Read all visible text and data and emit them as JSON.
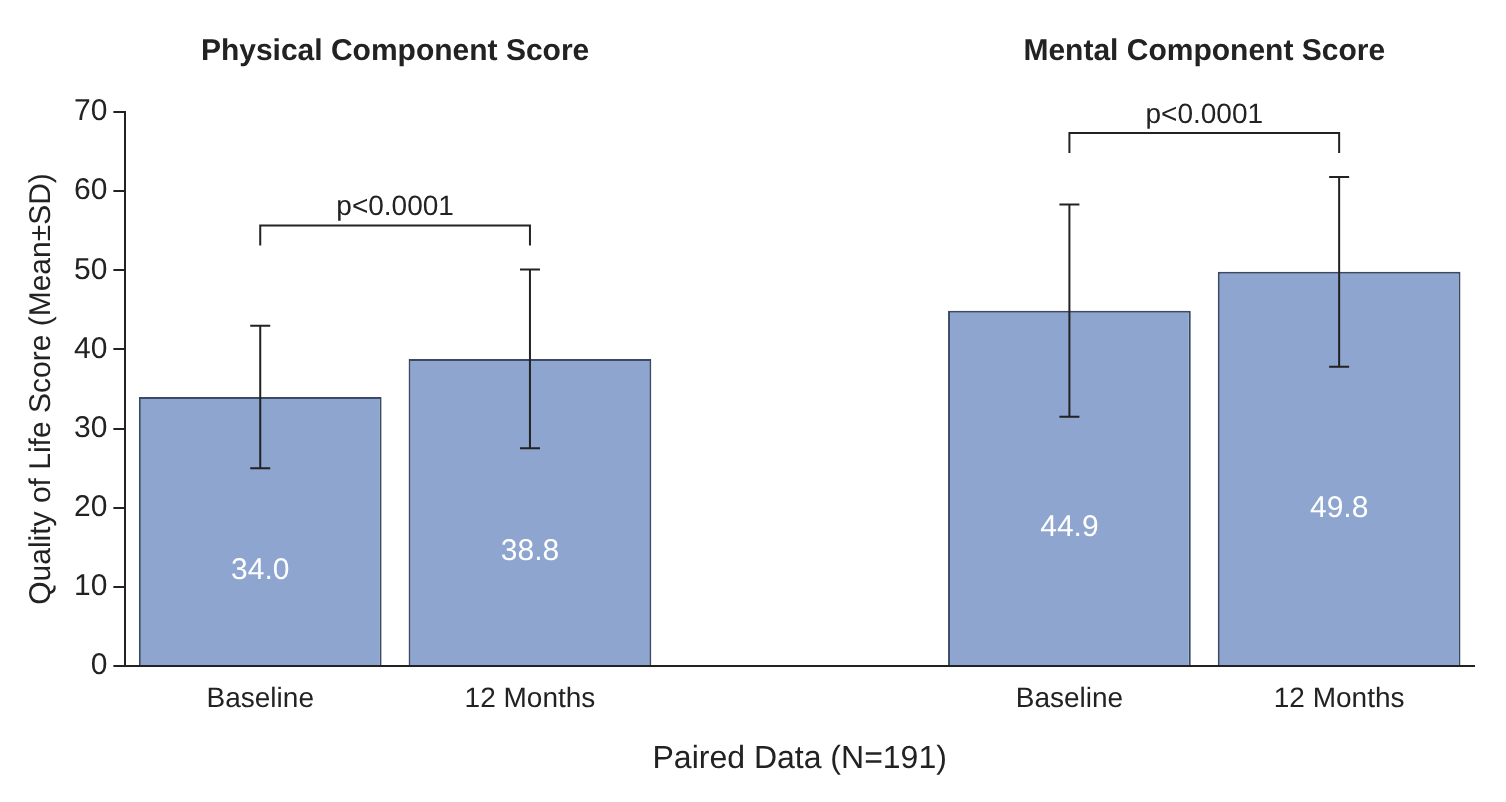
{
  "chart_data": {
    "type": "bar",
    "categories": [
      "Baseline",
      "12 Months",
      null,
      "Baseline",
      "12 Months"
    ],
    "values": [
      34.0,
      38.8,
      null,
      44.9,
      49.8
    ],
    "errors": [
      9.0,
      11.3,
      null,
      13.4,
      12.0
    ],
    "value_labels": [
      "34.0",
      "38.8",
      null,
      "44.9",
      "49.8"
    ],
    "color": "#8da5cf",
    "ylabel": "Quality of Life Score (Mean±SD)",
    "xlabel": "Paired Data (N=191)",
    "ylim": [
      0,
      70
    ],
    "yticks": [
      0,
      10,
      20,
      30,
      40,
      50,
      60,
      70
    ],
    "grid": false,
    "legend": false,
    "annotations": [
      "Physical Component Score",
      "Mental Component Score",
      "p<0.0001",
      "p<0.0001"
    ]
  }
}
